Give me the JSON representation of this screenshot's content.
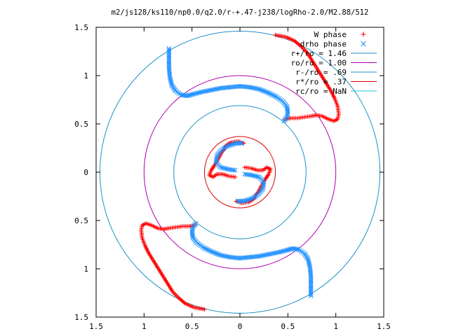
{
  "chart_data": {
    "type": "scatter",
    "title": "m2/js128/ks110/np0.0/q2.0/r-+.47-j238/logRho-2.0/M2.88/512",
    "xlim": [
      -1.5,
      1.5
    ],
    "ylim": [
      -1.5,
      1.5
    ],
    "x_tick_labels": [
      "1.5",
      "1",
      "0.5",
      "0",
      "0.5",
      "1",
      "1.5"
    ],
    "x_tick_values": [
      -1.5,
      -1,
      -0.5,
      0,
      0.5,
      1,
      1.5
    ],
    "y_tick_labels": [
      "1.5",
      "1",
      "0.5",
      "0",
      "0.5",
      "1",
      "1.5"
    ],
    "y_tick_values": [
      1.5,
      1,
      0.5,
      0,
      -0.5,
      -1,
      -1.5
    ],
    "legend_position": "top-right",
    "grid": false,
    "legend": [
      {
        "label": "W phase",
        "kind": "points",
        "symbol": "+",
        "color": "#ff0000"
      },
      {
        "label": "drho phase",
        "kind": "points",
        "symbol": "x",
        "color": "#1e90ff"
      },
      {
        "label": "r+/ro = 1.46",
        "kind": "line",
        "color": "#1e90c8"
      },
      {
        "label": "ro/ro = 1.00",
        "kind": "line",
        "color": "#b000b0"
      },
      {
        "label": "r-/ro = .69",
        "kind": "line",
        "color": "#1e90c8"
      },
      {
        "label": "r*/ro = .37",
        "kind": "line",
        "color": "#e00000"
      },
      {
        "label": "rc/ro = NaN",
        "kind": "line",
        "color": "#20c0d0"
      }
    ],
    "circles": [
      {
        "r": 1.46,
        "color": "#1e90c8"
      },
      {
        "r": 1.0,
        "color": "#b000b0"
      },
      {
        "r": 0.69,
        "color": "#1e90c8"
      },
      {
        "r": 0.37,
        "color": "#e00000"
      }
    ],
    "series": [
      {
        "name": "W phase",
        "symbol": "+",
        "color": "#ff0000",
        "segments": [
          [
            [
              0.37,
              1.42
            ],
            [
              0.48,
              1.4
            ],
            [
              0.57,
              1.36
            ],
            [
              0.64,
              1.3
            ],
            [
              0.7,
              1.24
            ],
            [
              0.75,
              1.16
            ],
            [
              0.8,
              1.08
            ],
            [
              0.85,
              1.0
            ],
            [
              0.9,
              0.92
            ],
            [
              0.95,
              0.84
            ],
            [
              0.99,
              0.76
            ],
            [
              1.02,
              0.68
            ],
            [
              1.03,
              0.6
            ],
            [
              1.02,
              0.55
            ],
            [
              0.98,
              0.53
            ],
            [
              0.92,
              0.55
            ],
            [
              0.86,
              0.58
            ],
            [
              0.8,
              0.59
            ],
            [
              0.74,
              0.58
            ],
            [
              0.67,
              0.57
            ],
            [
              0.6,
              0.56
            ],
            [
              0.53,
              0.56
            ],
            [
              0.47,
              0.55
            ]
          ],
          [
            [
              -0.37,
              -1.42
            ],
            [
              -0.48,
              -1.4
            ],
            [
              -0.57,
              -1.36
            ],
            [
              -0.64,
              -1.3
            ],
            [
              -0.7,
              -1.24
            ],
            [
              -0.75,
              -1.16
            ],
            [
              -0.8,
              -1.08
            ],
            [
              -0.85,
              -1.0
            ],
            [
              -0.9,
              -0.92
            ],
            [
              -0.95,
              -0.84
            ],
            [
              -0.99,
              -0.76
            ],
            [
              -1.02,
              -0.68
            ],
            [
              -1.03,
              -0.6
            ],
            [
              -1.02,
              -0.55
            ],
            [
              -0.98,
              -0.53
            ],
            [
              -0.92,
              -0.55
            ],
            [
              -0.86,
              -0.58
            ],
            [
              -0.8,
              -0.59
            ],
            [
              -0.74,
              -0.58
            ],
            [
              -0.67,
              -0.57
            ],
            [
              -0.6,
              -0.56
            ],
            [
              -0.53,
              -0.56
            ],
            [
              -0.47,
              -0.55
            ]
          ],
          [
            [
              0.05,
              0.05
            ],
            [
              0.12,
              0.04
            ],
            [
              0.18,
              0.02
            ],
            [
              0.24,
              0.02
            ],
            [
              0.28,
              0.05
            ],
            [
              0.32,
              0.03
            ],
            [
              0.3,
              -0.02
            ],
            [
              0.26,
              -0.08
            ],
            [
              0.22,
              -0.15
            ],
            [
              0.18,
              -0.22
            ],
            [
              0.14,
              -0.28
            ],
            [
              0.09,
              -0.31
            ],
            [
              0.02,
              -0.32
            ],
            [
              -0.04,
              -0.3
            ]
          ],
          [
            [
              -0.05,
              -0.05
            ],
            [
              -0.12,
              -0.04
            ],
            [
              -0.18,
              -0.02
            ],
            [
              -0.24,
              -0.02
            ],
            [
              -0.28,
              -0.05
            ],
            [
              -0.32,
              -0.03
            ],
            [
              -0.3,
              0.02
            ],
            [
              -0.26,
              0.08
            ],
            [
              -0.22,
              0.15
            ],
            [
              -0.18,
              0.22
            ],
            [
              -0.14,
              0.28
            ],
            [
              -0.09,
              0.31
            ],
            [
              -0.02,
              0.32
            ],
            [
              0.04,
              0.3
            ]
          ]
        ]
      },
      {
        "name": "drho phase",
        "symbol": "x",
        "color": "#1e90ff",
        "segments": [
          [
            [
              -0.74,
              1.28
            ],
            [
              -0.74,
              1.18
            ],
            [
              -0.74,
              1.08
            ],
            [
              -0.73,
              0.98
            ],
            [
              -0.71,
              0.9
            ],
            [
              -0.67,
              0.84
            ],
            [
              -0.61,
              0.8
            ],
            [
              -0.55,
              0.79
            ],
            [
              -0.48,
              0.81
            ],
            [
              -0.4,
              0.83
            ],
            [
              -0.3,
              0.85
            ],
            [
              -0.2,
              0.87
            ],
            [
              -0.1,
              0.88
            ],
            [
              0.0,
              0.89
            ],
            [
              0.1,
              0.88
            ],
            [
              0.2,
              0.86
            ],
            [
              0.3,
              0.82
            ],
            [
              0.38,
              0.78
            ],
            [
              0.45,
              0.73
            ],
            [
              0.49,
              0.68
            ],
            [
              0.5,
              0.62
            ],
            [
              0.49,
              0.57
            ],
            [
              0.46,
              0.53
            ]
          ],
          [
            [
              0.74,
              -1.28
            ],
            [
              0.74,
              -1.18
            ],
            [
              0.74,
              -1.08
            ],
            [
              0.73,
              -0.98
            ],
            [
              0.71,
              -0.9
            ],
            [
              0.67,
              -0.84
            ],
            [
              0.61,
              -0.8
            ],
            [
              0.55,
              -0.79
            ],
            [
              0.48,
              -0.81
            ],
            [
              0.4,
              -0.83
            ],
            [
              0.3,
              -0.85
            ],
            [
              0.2,
              -0.87
            ],
            [
              0.1,
              -0.88
            ],
            [
              0.0,
              -0.89
            ],
            [
              -0.1,
              -0.88
            ],
            [
              -0.2,
              -0.86
            ],
            [
              -0.3,
              -0.82
            ],
            [
              -0.38,
              -0.78
            ],
            [
              -0.45,
              -0.73
            ],
            [
              -0.49,
              -0.68
            ],
            [
              -0.5,
              -0.62
            ],
            [
              -0.49,
              -0.57
            ],
            [
              -0.46,
              -0.53
            ]
          ],
          [
            [
              -0.05,
              0.02
            ],
            [
              -0.12,
              0.03
            ],
            [
              -0.2,
              0.05
            ],
            [
              -0.25,
              0.1
            ],
            [
              -0.24,
              0.17
            ],
            [
              -0.2,
              0.22
            ],
            [
              -0.15,
              0.26
            ],
            [
              -0.1,
              0.28
            ],
            [
              -0.04,
              0.3
            ],
            [
              0.02,
              0.3
            ]
          ],
          [
            [
              0.05,
              -0.02
            ],
            [
              0.12,
              -0.03
            ],
            [
              0.2,
              -0.05
            ],
            [
              0.25,
              -0.1
            ],
            [
              0.24,
              -0.17
            ],
            [
              0.2,
              -0.22
            ],
            [
              0.15,
              -0.26
            ],
            [
              0.1,
              -0.28
            ],
            [
              0.04,
              -0.3
            ],
            [
              -0.02,
              -0.3
            ]
          ]
        ]
      }
    ]
  }
}
